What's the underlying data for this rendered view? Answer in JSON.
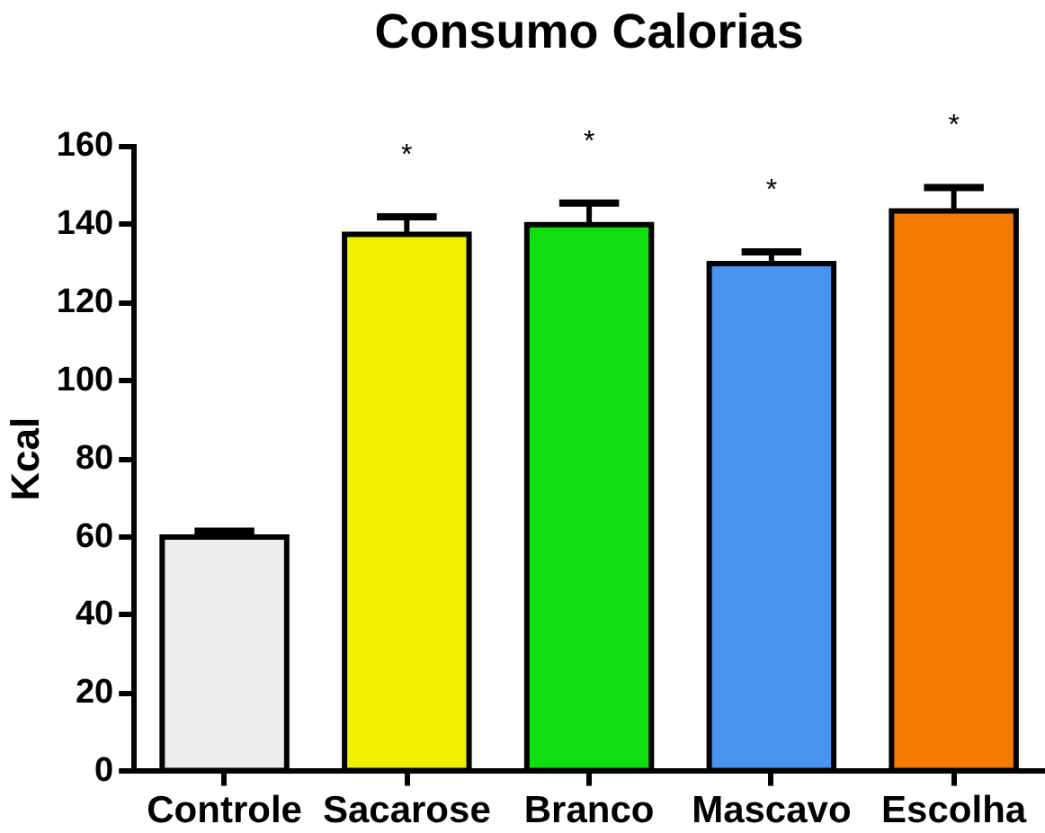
{
  "chart_data": {
    "type": "bar",
    "title": "Consumo Calorias",
    "ylabel": "Kcal",
    "categories": [
      "Controle",
      "Sacarose",
      "Branco",
      "Mascavo",
      "Escolha"
    ],
    "values": [
      60,
      137.5,
      140,
      130,
      143.5
    ],
    "colors": [
      "#ececec",
      "#f2ee00",
      "#0fdf0f",
      "#4a93ee",
      "#f47c00"
    ],
    "errors": [
      [
        60,
        61.5
      ],
      [
        137.5,
        142
      ],
      [
        140,
        145.5
      ],
      [
        130,
        133
      ],
      [
        143.5,
        149.5
      ]
    ],
    "ylim": [
      0,
      160
    ],
    "yticks": [
      0,
      20,
      40,
      60,
      80,
      100,
      120,
      140,
      160
    ],
    "grid": false,
    "legend": false,
    "annotations": [
      {
        "text": "*",
        "x": "Sacarose",
        "y": 137.5
      },
      {
        "text": "*",
        "x": "Branco",
        "y": 140
      },
      {
        "text": "*",
        "x": "Mascavo",
        "y": 130
      },
      {
        "text": "*",
        "x": "Escolha",
        "y": 143.5
      }
    ]
  }
}
